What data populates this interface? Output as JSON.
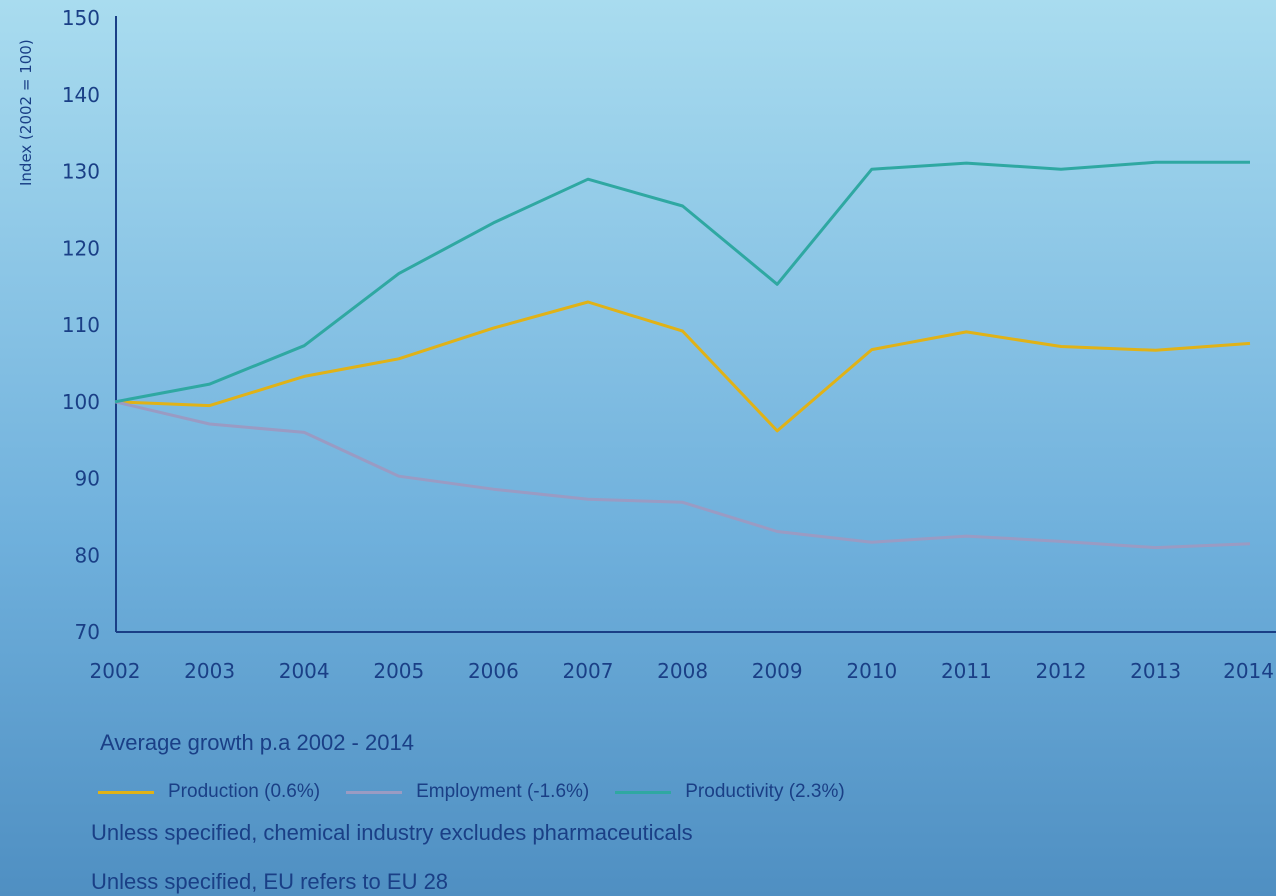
{
  "chart_data": {
    "type": "line",
    "x": [
      "2002",
      "2003",
      "2004",
      "2005",
      "2006",
      "2007",
      "2008",
      "2009",
      "2010",
      "2011",
      "2012",
      "2013",
      "2014"
    ],
    "ylabel": "Index (2002 = 100)",
    "ylim": [
      70,
      150
    ],
    "yticks": [
      70,
      80,
      90,
      100,
      110,
      120,
      130,
      140,
      150
    ],
    "grid": false,
    "series": [
      {
        "name": "Production (0.6%)",
        "color": "#e0b217",
        "values": [
          100,
          99.5,
          103.3,
          105.6,
          109.6,
          113.0,
          109.2,
          96.2,
          106.8,
          109.1,
          107.2,
          106.7,
          107.6
        ]
      },
      {
        "name": "Employment (-1.6%)",
        "color": "#9a9bc3",
        "values": [
          100,
          97.1,
          96.0,
          90.3,
          88.6,
          87.3,
          86.9,
          83.1,
          81.7,
          82.5,
          81.8,
          81.0,
          81.5
        ]
      },
      {
        "name": "Productivity (2.3%)",
        "color": "#2fa8a2",
        "values": [
          100,
          102.3,
          107.3,
          116.7,
          123.3,
          129.0,
          125.5,
          115.3,
          130.3,
          131.1,
          130.3,
          131.2,
          131.2
        ]
      }
    ]
  },
  "legend": {
    "title": "Average growth p.a 2002 - 2014"
  },
  "notes": [
    "Unless specified, chemical industry excludes pharmaceuticals",
    "Unless specified, EU refers to EU 28"
  ]
}
